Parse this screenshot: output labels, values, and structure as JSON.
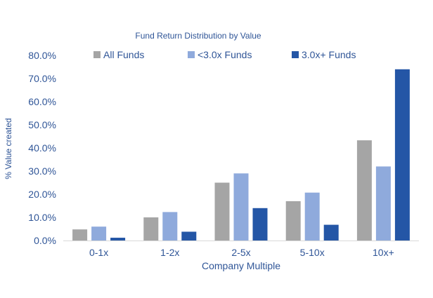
{
  "chart_data": {
    "type": "bar",
    "title": "Fund Return Distribution by Value",
    "xlabel": "Company Multiple",
    "ylabel": "% Value created",
    "categories": [
      "0-1x",
      "1-2x",
      "2-5x",
      "5-10x",
      "10x+"
    ],
    "series": [
      {
        "name": "All Funds",
        "color": "#a5a5a5",
        "values": [
          4.8,
          10.0,
          25.0,
          17.0,
          43.3
        ]
      },
      {
        "name": "<3.0x Funds",
        "color": "#8faadc",
        "values": [
          6.0,
          12.3,
          29.0,
          20.7,
          32.0
        ]
      },
      {
        "name": "3.0x+ Funds",
        "color": "#2456a6",
        "values": [
          1.2,
          3.8,
          14.0,
          6.8,
          74.0
        ]
      }
    ],
    "yticks": [
      "0.0%",
      "10.0%",
      "20.0%",
      "30.0%",
      "40.0%",
      "50.0%",
      "60.0%",
      "70.0%",
      "80.0%"
    ],
    "ylim": [
      0,
      80
    ],
    "grid": false,
    "legend_position": "top",
    "text_color": "#2f5597"
  }
}
